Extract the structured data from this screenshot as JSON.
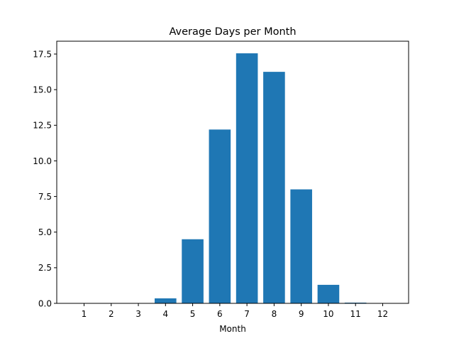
{
  "chart_data": {
    "type": "bar",
    "title": "Average Days per Month",
    "xlabel": "Month",
    "ylabel": "",
    "categories": [
      "1",
      "2",
      "3",
      "4",
      "5",
      "6",
      "7",
      "8",
      "9",
      "10",
      "11",
      "12"
    ],
    "values": [
      0,
      0,
      0,
      0.35,
      4.5,
      12.2,
      17.55,
      16.25,
      8.0,
      1.3,
      0.05,
      0
    ],
    "ylim": [
      0,
      18.4
    ],
    "yticks": [
      "0.0",
      "2.5",
      "5.0",
      "7.5",
      "10.0",
      "12.5",
      "15.0",
      "17.5"
    ],
    "ytick_values": [
      0,
      2.5,
      5,
      7.5,
      10,
      12.5,
      15,
      17.5
    ],
    "grid": false,
    "bar_color": "#1f77b4"
  }
}
